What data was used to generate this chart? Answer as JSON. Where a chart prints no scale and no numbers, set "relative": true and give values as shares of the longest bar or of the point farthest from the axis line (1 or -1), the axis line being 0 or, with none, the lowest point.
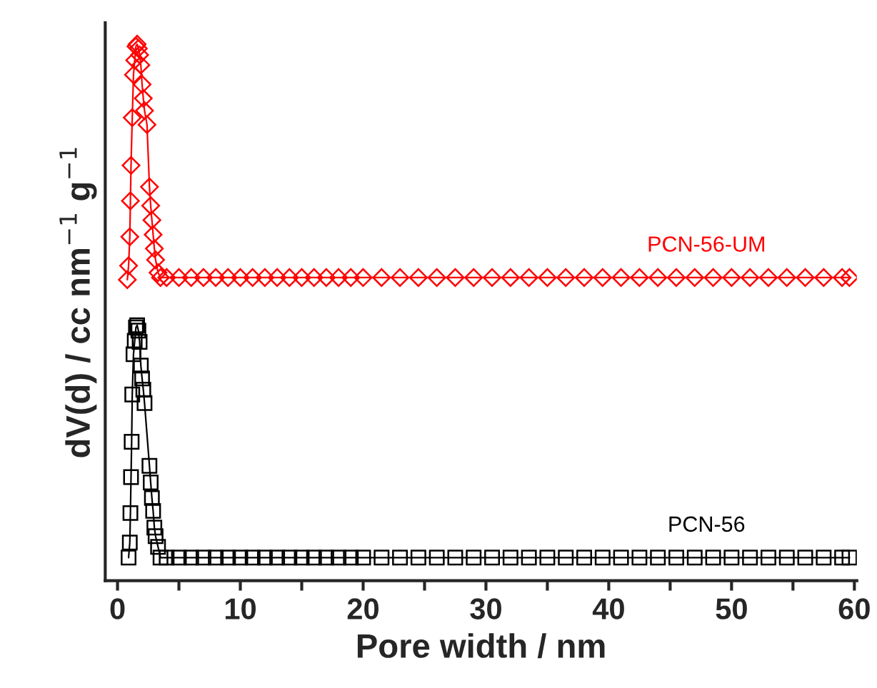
{
  "chart_data": {
    "type": "line",
    "relative": true,
    "xlabel": "Pore width / nm",
    "ylabel": "dV(d) / cc nm$^{−1}$ g$^{−1}$",
    "xlim": [
      -1,
      60.2
    ],
    "xticks": [
      0,
      {
        "value": 5,
        "label": null
      },
      10,
      {
        "value": 15,
        "label": null
      },
      20,
      {
        "value": 25,
        "label": null
      },
      30,
      {
        "value": 35,
        "label": null
      },
      40,
      {
        "value": 45,
        "label": null
      },
      50,
      {
        "value": 55,
        "label": null
      },
      60
    ],
    "line_style": "solid",
    "grid": false,
    "legend": false,
    "series": [
      {
        "name": "PCN-56-UM",
        "color": "#ff0000",
        "marker": "diamond",
        "x": [
          0.8,
          0.9,
          1.0,
          1.05,
          1.1,
          1.2,
          1.3,
          1.4,
          1.5,
          1.6,
          1.7,
          1.8,
          1.9,
          2.0,
          2.1,
          2.2,
          2.4,
          2.6,
          2.7,
          2.8,
          2.9,
          3.0,
          3.1,
          3.3,
          3.5,
          4,
          5,
          6,
          7,
          8,
          9,
          10,
          11,
          12,
          13,
          14,
          15,
          16,
          17,
          18,
          19,
          20,
          21.5,
          23,
          24.5,
          26,
          27.5,
          29,
          30.5,
          32,
          33.5,
          35,
          36.5,
          38,
          39.5,
          41,
          42.5,
          44,
          45.5,
          47,
          48.5,
          50,
          51.5,
          53,
          54.5,
          56,
          57.5,
          59,
          59.6
        ],
        "values": [
          0.561,
          0.587,
          0.641,
          0.708,
          0.774,
          0.863,
          0.943,
          0.97,
          0.996,
          1.0,
          0.992,
          0.98,
          0.961,
          0.925,
          0.899,
          0.876,
          0.85,
          0.734,
          0.699,
          0.672,
          0.645,
          0.619,
          0.598,
          0.574,
          0.565,
          0.565,
          0.565,
          0.565,
          0.565,
          0.565,
          0.565,
          0.565,
          0.565,
          0.565,
          0.565,
          0.565,
          0.565,
          0.565,
          0.565,
          0.565,
          0.565,
          0.565,
          0.565,
          0.565,
          0.565,
          0.565,
          0.565,
          0.565,
          0.565,
          0.565,
          0.565,
          0.565,
          0.565,
          0.565,
          0.565,
          0.565,
          0.565,
          0.565,
          0.565,
          0.565,
          0.565,
          0.565,
          0.565,
          0.565,
          0.565,
          0.565,
          0.565,
          0.565,
          0.565
        ]
      },
      {
        "name": "PCN-56",
        "color": "#000000",
        "marker": "square",
        "x": [
          0.9,
          1.0,
          1.05,
          1.1,
          1.15,
          1.2,
          1.3,
          1.4,
          1.5,
          1.6,
          1.7,
          1.8,
          1.9,
          2.0,
          2.1,
          2.2,
          2.6,
          2.7,
          2.8,
          2.9,
          3.0,
          3.1,
          3.3,
          3.5,
          4,
          5,
          6,
          7,
          8,
          9,
          10,
          11,
          12,
          13,
          14,
          15,
          16,
          17,
          18,
          19,
          20,
          21.5,
          23,
          24.5,
          26,
          27.5,
          29,
          30.5,
          32,
          33.5,
          35,
          36.5,
          38,
          39.5,
          41,
          42.5,
          44,
          45.5,
          47,
          48.5,
          50,
          51.5,
          53,
          54.5,
          56,
          57.5,
          59,
          59.6
        ],
        "values": [
          0.043,
          0.071,
          0.126,
          0.193,
          0.259,
          0.347,
          0.422,
          0.447,
          0.472,
          0.476,
          0.466,
          0.445,
          0.401,
          0.377,
          0.356,
          0.331,
          0.214,
          0.183,
          0.154,
          0.13,
          0.099,
          0.083,
          0.063,
          0.043,
          0.043,
          0.043,
          0.043,
          0.043,
          0.043,
          0.043,
          0.043,
          0.043,
          0.043,
          0.043,
          0.043,
          0.043,
          0.043,
          0.043,
          0.043,
          0.043,
          0.043,
          0.043,
          0.043,
          0.043,
          0.043,
          0.043,
          0.043,
          0.043,
          0.043,
          0.043,
          0.043,
          0.043,
          0.043,
          0.043,
          0.043,
          0.043,
          0.043,
          0.043,
          0.043,
          0.043,
          0.043,
          0.043,
          0.043,
          0.043,
          0.043,
          0.043,
          0.043,
          0.043
        ]
      }
    ]
  }
}
